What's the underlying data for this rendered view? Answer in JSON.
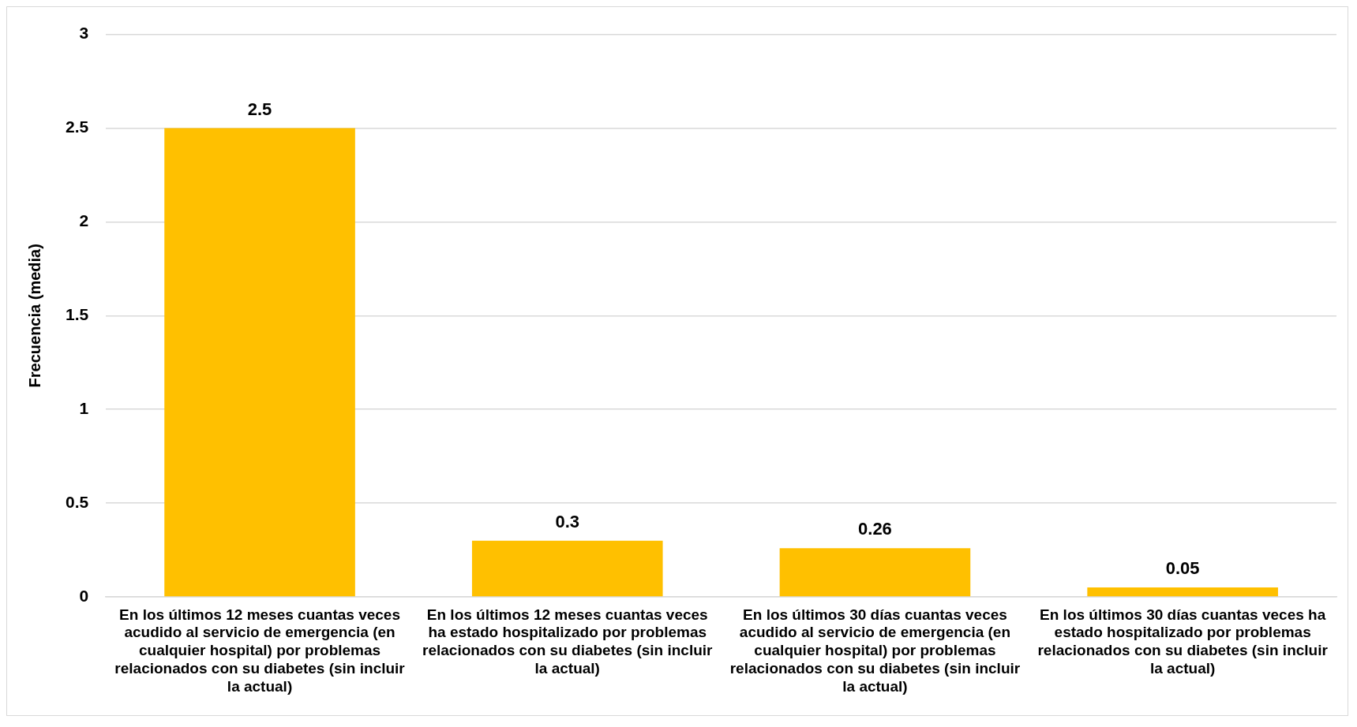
{
  "chart_data": {
    "type": "bar",
    "ylabel": "Frecuencia (media)",
    "categories": [
      "En los últimos 12 meses cuantas veces acudido al servicio de emergencia (en cualquier hospital) por problemas relacionados con su diabetes (sin incluir la actual)",
      "En los últimos 12 meses cuantas veces ha estado hospitalizado por problemas relacionados con su diabetes (sin incluir la actual)",
      "En los últimos 30 días cuantas veces acudido al servicio de emergencia (en cualquier hospital) por problemas relacionados con su diabetes (sin incluir la actual)",
      "En los últimos 30 días cuantas veces ha estado hospitalizado por problemas relacionados con su diabetes (sin incluir la actual)"
    ],
    "values": [
      2.5,
      0.3,
      0.26,
      0.05
    ],
    "color": "#ffc000",
    "ylim": [
      0,
      3
    ],
    "yticks": [
      0,
      0.5,
      1,
      1.5,
      2,
      2.5,
      3
    ],
    "grid": "y",
    "legend": false,
    "data_labels": true
  }
}
